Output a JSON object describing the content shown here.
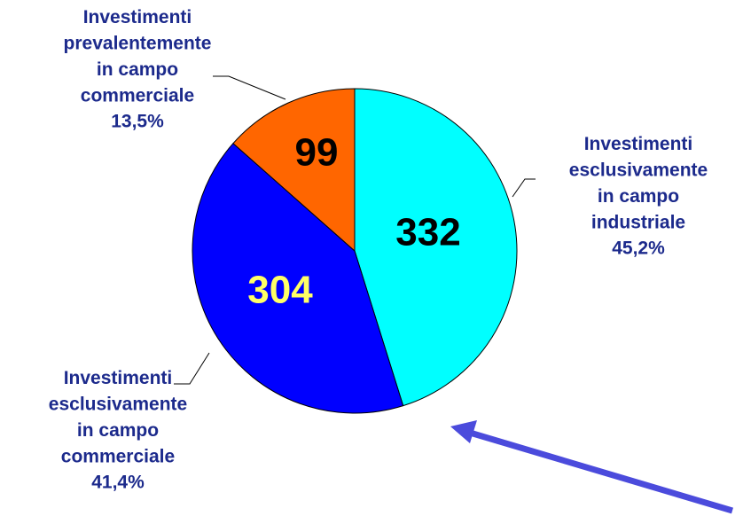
{
  "chart_data": {
    "type": "pie",
    "categories": [
      "Investimenti\nesclusivamente\nin campo\nindustriale",
      "Investimenti\nesclusivamente\nin campo\ncommerciale",
      "Investimenti\nprevalentemente\nin campo\ncommerciale"
    ],
    "values": [
      332,
      304,
      99
    ],
    "percent_labels": [
      "45,2%",
      "41,4%",
      "13,5%"
    ],
    "colors": [
      "#00ffff",
      "#0000ff",
      "#ff6600"
    ],
    "value_label_colors": [
      "#000000",
      "#ffff66",
      "#000000"
    ]
  }
}
